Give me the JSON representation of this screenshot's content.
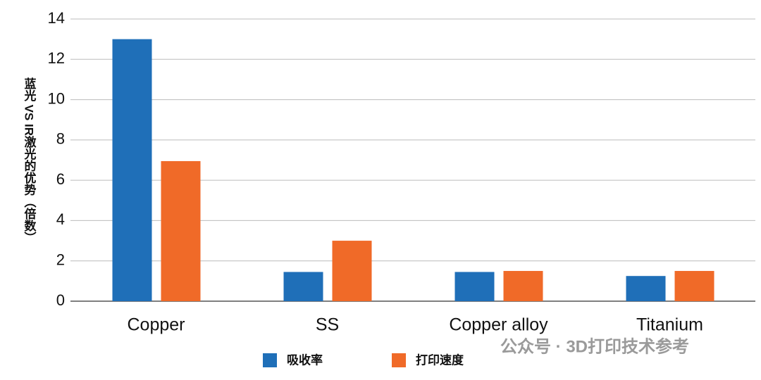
{
  "chart_data": {
    "type": "bar",
    "y_label": "蓝光 VS IR激光的优势（倍数）",
    "categories": [
      "Copper",
      "SS",
      "Copper alloy",
      "Titanium"
    ],
    "series": [
      {
        "name": "吸收率",
        "color": "#1f6fb8",
        "values": [
          13,
          1.45,
          1.45,
          1.25
        ]
      },
      {
        "name": "打印速度",
        "color": "#f06a28",
        "values": [
          6.95,
          3,
          1.5,
          1.5
        ]
      }
    ],
    "ylim": [
      0,
      14
    ],
    "yticks": [
      0,
      2,
      4,
      6,
      8,
      10,
      12,
      14
    ],
    "grid": true,
    "legend": "bottom",
    "watermark": "公众号 · 3D打印技术参考"
  }
}
